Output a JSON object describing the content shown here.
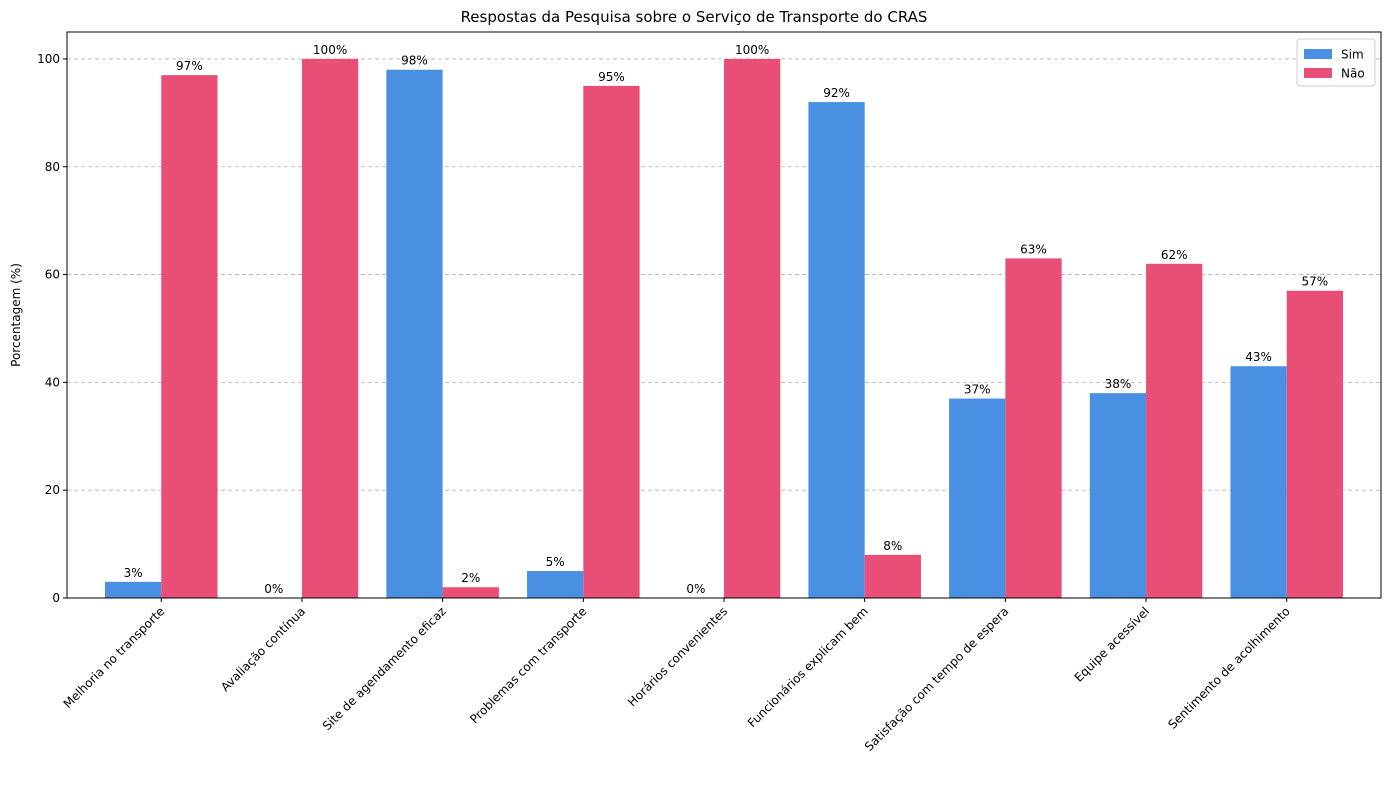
{
  "chart_data": {
    "type": "bar",
    "title": "Respostas da Pesquisa sobre o Serviço de Transporte do CRAS",
    "xlabel": "",
    "ylabel": "Porcentagem (%)",
    "ylim": [
      0,
      105
    ],
    "yticks": [
      0,
      20,
      40,
      60,
      80,
      100
    ],
    "grid": "y-dashed",
    "legend_position": "top-right",
    "categories": [
      "Melhoria no transporte",
      "Avaliação contínua",
      "Site de agendamento eficaz",
      "Problemas com transporte",
      "Horários convenientes",
      "Funcionários explicam bem",
      "Satisfação com tempo de espera",
      "Equipe acessível",
      "Sentimento de acolhimento"
    ],
    "series": [
      {
        "name": "Sim",
        "color": "#4a90e2",
        "values": [
          3,
          0,
          98,
          5,
          0,
          92,
          37,
          38,
          43
        ]
      },
      {
        "name": "Não",
        "color": "#e94e77",
        "values": [
          97,
          100,
          2,
          95,
          100,
          8,
          63,
          62,
          57
        ]
      }
    ],
    "value_suffix": "%"
  }
}
